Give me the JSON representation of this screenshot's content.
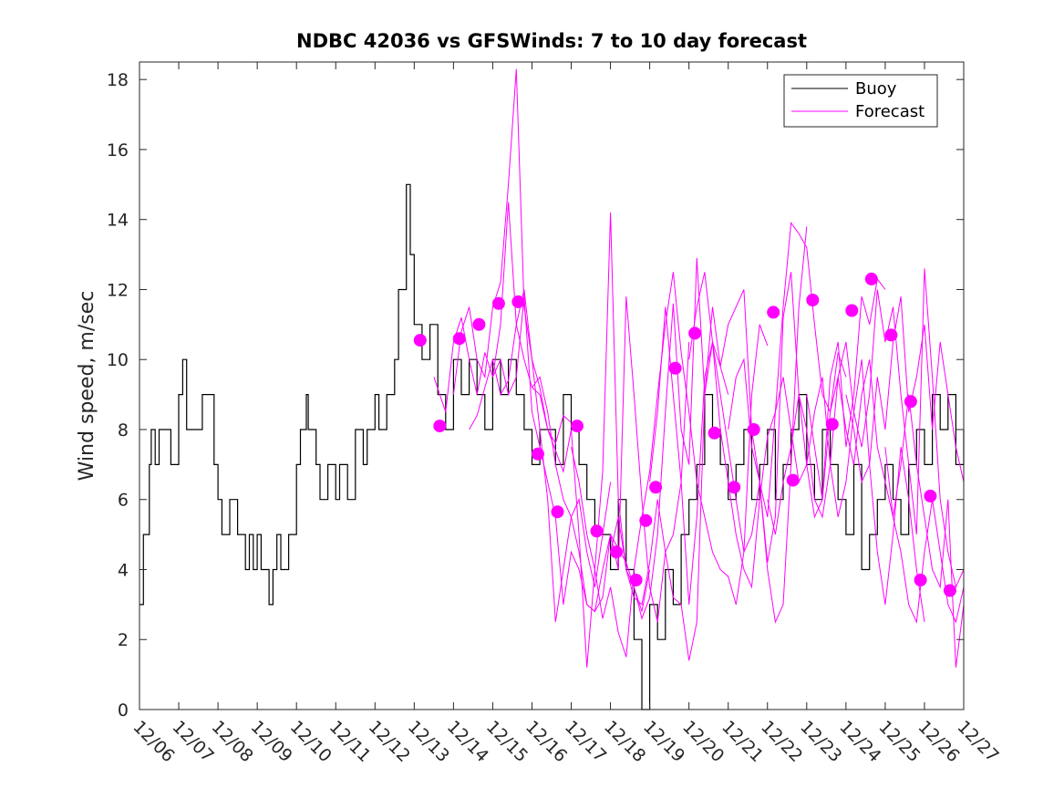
{
  "chart_data": {
    "type": "line",
    "title": "NDBC 42036 vs GFSWinds: 7 to 10 day forecast",
    "xlabel": "",
    "ylabel": "Wind speed, m/sec",
    "xlim": [
      0,
      21
    ],
    "ylim": [
      0,
      18.5
    ],
    "x_tick_labels": [
      "12/06",
      "12/07",
      "12/08",
      "12/09",
      "12/10",
      "12/11",
      "12/12",
      "12/13",
      "12/14",
      "12/15",
      "12/16",
      "12/17",
      "12/18",
      "12/19",
      "12/20",
      "12/21",
      "12/22",
      "12/23",
      "12/24",
      "12/25",
      "12/26",
      "12/27"
    ],
    "y_ticks": [
      0,
      2,
      4,
      6,
      8,
      10,
      12,
      14,
      16,
      18
    ],
    "legend": {
      "position": "top-right",
      "entries": [
        {
          "label": "Buoy",
          "color": "#000000"
        },
        {
          "label": "Forecast",
          "color": "#ff00ff"
        }
      ]
    },
    "series": [
      {
        "name": "Buoy",
        "color": "#000000",
        "x": [
          0,
          0.1,
          0.25,
          0.3,
          0.4,
          0.5,
          0.7,
          0.8,
          1.0,
          1.1,
          1.2,
          1.5,
          1.6,
          1.9,
          2.0,
          2.1,
          2.3,
          2.5,
          2.7,
          2.8,
          2.9,
          3.0,
          3.1,
          3.3,
          3.4,
          3.5,
          3.6,
          3.8,
          4.0,
          4.1,
          4.25,
          4.3,
          4.5,
          4.6,
          4.8,
          5.0,
          5.1,
          5.3,
          5.5,
          5.6,
          5.7,
          5.8,
          6.0,
          6.1,
          6.3,
          6.5,
          6.6,
          6.8,
          6.9,
          7.0,
          7.2,
          7.4,
          7.6,
          7.8,
          8.0,
          8.2,
          8.4,
          8.6,
          8.8,
          9.0,
          9.2,
          9.4,
          9.6,
          9.8,
          10.0,
          10.2,
          10.4,
          10.6,
          10.8,
          11.0,
          11.2,
          11.4,
          11.6,
          11.8,
          12.0,
          12.2,
          12.4,
          12.6,
          12.8,
          13.0,
          13.2,
          13.4,
          13.6,
          13.8,
          14.0,
          14.2,
          14.4,
          14.6,
          14.8,
          15.0,
          15.2,
          15.4,
          15.6,
          15.8,
          16.0,
          16.2,
          16.4,
          16.6,
          16.8,
          17.0,
          17.2,
          17.4,
          17.6,
          17.8,
          18.0,
          18.2,
          18.4,
          18.6,
          18.8,
          19.0,
          19.2,
          19.4,
          19.6,
          19.8,
          20.0,
          20.2,
          20.4,
          20.6,
          20.8,
          21.0
        ],
        "values": [
          3,
          5,
          7,
          8,
          7,
          8,
          8,
          7,
          9,
          10,
          8,
          8,
          9,
          7,
          6,
          5,
          6,
          5,
          4,
          5,
          4,
          5,
          4,
          3,
          4,
          5,
          4,
          5,
          7,
          8,
          9,
          8,
          7,
          6,
          7,
          6,
          7,
          6,
          8,
          8,
          7,
          8,
          9,
          8,
          9,
          10,
          12,
          15,
          13,
          11,
          10,
          11,
          9,
          8,
          10,
          9,
          10,
          9,
          8,
          10,
          9,
          10,
          9,
          8,
          7,
          8,
          8,
          7,
          9,
          8,
          7,
          6,
          5,
          5,
          4,
          6,
          4,
          2,
          0,
          3,
          2,
          4,
          3,
          5,
          6,
          7,
          9,
          8,
          7,
          6,
          7,
          8,
          6,
          7,
          8,
          6,
          7,
          8,
          9,
          7,
          6,
          8,
          7,
          6,
          5,
          7,
          4,
          5,
          6,
          7,
          6,
          5,
          7,
          8,
          7,
          9,
          8,
          9,
          7,
          8
        ]
      },
      {
        "name": "Forecast run 1",
        "color": "#ff00ff",
        "x": [
          7.5,
          7.8,
          8.0,
          8.2,
          8.4,
          8.6,
          8.8,
          9.0,
          9.2,
          9.4,
          9.6,
          9.8,
          10.0,
          10.2,
          10.4,
          10.6,
          10.8,
          11.0
        ],
        "values": [
          9.5,
          8.5,
          10.5,
          11.2,
          10.0,
          9.0,
          10.2,
          9.5,
          11.0,
          14.5,
          11.0,
          10.0,
          9.2,
          9.0,
          8.0,
          7.6,
          8.4,
          8.2
        ]
      },
      {
        "name": "Forecast run 2",
        "color": "#ff00ff",
        "x": [
          8.0,
          8.2,
          8.4,
          8.6,
          8.8,
          9.0,
          9.2,
          9.4,
          9.6,
          9.8,
          10.0,
          10.2,
          10.4,
          10.6,
          10.8,
          11.0,
          11.2,
          11.4,
          11.6,
          11.8,
          12.0
        ],
        "values": [
          9.0,
          10.8,
          11.5,
          10.0,
          9.5,
          11.5,
          12.2,
          15.0,
          18.3,
          11.5,
          10.0,
          8.0,
          6.0,
          2.5,
          4.0,
          5.5,
          6.0,
          4.5,
          3.5,
          5.0,
          6.5
        ]
      },
      {
        "name": "Forecast run 3",
        "color": "#ff00ff",
        "x": [
          8.4,
          8.6,
          8.8,
          9.0,
          9.2,
          9.4,
          9.6,
          9.8,
          10.0,
          10.2,
          10.4,
          10.6,
          10.8,
          11.0,
          11.2,
          11.4,
          11.6,
          11.8,
          12.0,
          12.2,
          12.4,
          12.6,
          12.8,
          13.0
        ],
        "values": [
          8.0,
          8.4,
          9.2,
          10.0,
          9.0,
          9.4,
          11.0,
          12.0,
          10.0,
          9.2,
          8.0,
          7.4,
          6.8,
          8.0,
          5.0,
          1.2,
          4.0,
          6.8,
          14.2,
          6.0,
          4.0,
          3.5,
          2.8,
          4.0
        ]
      },
      {
        "name": "Forecast run 4",
        "color": "#ff00ff",
        "x": [
          9.0,
          9.2,
          9.4,
          9.6,
          9.8,
          10.0,
          10.2,
          10.4,
          10.6,
          10.8,
          11.0,
          11.2,
          11.4,
          11.6,
          11.8,
          12.0,
          12.2,
          12.4,
          12.6,
          12.8,
          13.0,
          13.2,
          13.4,
          13.6,
          13.8,
          14.0
        ],
        "values": [
          9.5,
          10.0,
          9.0,
          9.5,
          11.8,
          8.5,
          7.5,
          6.5,
          5.5,
          3.0,
          4.5,
          4.0,
          3.0,
          2.8,
          4.0,
          5.0,
          4.0,
          11.8,
          9.0,
          6.0,
          3.5,
          2.5,
          4.5,
          5.0,
          6.5,
          10.5
        ]
      },
      {
        "name": "Forecast run 5",
        "color": "#ff00ff",
        "x": [
          10.0,
          10.2,
          10.4,
          10.6,
          10.8,
          11.0,
          11.2,
          11.4,
          11.6,
          11.8,
          12.0,
          12.2,
          12.4,
          12.6,
          12.8,
          13.0,
          13.2,
          13.4,
          13.6,
          13.8,
          14.0,
          14.2,
          14.4,
          14.6,
          14.8,
          15.0
        ],
        "values": [
          9.2,
          9.5,
          8.5,
          7.0,
          6.0,
          5.5,
          4.5,
          3.0,
          2.8,
          3.2,
          5.0,
          4.6,
          4.2,
          3.5,
          2.6,
          3.2,
          5.0,
          8.5,
          11.6,
          8.0,
          7.0,
          12.9,
          9.0,
          11.5,
          9.8,
          9.0
        ]
      },
      {
        "name": "Forecast run 6",
        "color": "#ff00ff",
        "x": [
          11.0,
          11.2,
          11.4,
          11.6,
          11.8,
          12.0,
          12.2,
          12.4,
          12.6,
          12.8,
          13.0,
          13.2,
          13.4,
          13.6,
          13.8,
          14.0,
          14.2,
          14.4,
          14.6,
          14.8,
          15.0,
          15.2,
          15.4,
          15.6,
          15.8,
          16.0
        ],
        "values": [
          7.5,
          6.5,
          5.0,
          4.0,
          2.6,
          3.5,
          2.2,
          1.5,
          4.0,
          5.5,
          6.8,
          9.0,
          11.0,
          12.5,
          10.2,
          8.5,
          6.5,
          5.5,
          4.5,
          4.0,
          3.8,
          3.0,
          4.5,
          9.0,
          11.0,
          10.4
        ]
      },
      {
        "name": "Forecast run 7",
        "color": "#ff00ff",
        "x": [
          12.0,
          12.2,
          12.4,
          12.6,
          12.8,
          13.0,
          13.2,
          13.4,
          13.6,
          13.8,
          14.0,
          14.2,
          14.4,
          14.6,
          14.8,
          15.0,
          15.2,
          15.4,
          15.6,
          15.8,
          16.0,
          16.2,
          16.4,
          16.6,
          16.8,
          17.0
        ],
        "values": [
          4.5,
          5.5,
          4.0,
          3.2,
          3.0,
          4.2,
          6.0,
          4.5,
          3.2,
          3.0,
          1.4,
          2.5,
          9.0,
          10.5,
          9.8,
          11.0,
          11.5,
          12.0,
          8.0,
          6.5,
          4.0,
          2.5,
          3.0,
          7.0,
          11.5,
          13.8
        ]
      },
      {
        "name": "Forecast run 8",
        "color": "#ff00ff",
        "x": [
          13.0,
          13.2,
          13.4,
          13.6,
          13.8,
          14.0,
          14.2,
          14.4,
          14.6,
          14.8,
          15.0,
          15.2,
          15.4,
          15.6,
          15.8,
          16.0,
          16.2,
          16.4,
          16.6,
          16.8,
          17.0,
          17.2,
          17.4,
          17.6,
          17.8,
          18.0
        ],
        "values": [
          6.5,
          8.5,
          11.5,
          9.0,
          6.5,
          3.0,
          5.5,
          9.5,
          10.5,
          8.0,
          6.5,
          5.0,
          4.0,
          3.5,
          6.0,
          7.8,
          8.5,
          11.5,
          13.9,
          13.6,
          13.2,
          11.0,
          9.0,
          8.5,
          10.2,
          9.5
        ]
      },
      {
        "name": "Forecast run 9",
        "color": "#ff00ff",
        "x": [
          14.0,
          14.2,
          14.4,
          14.6,
          14.8,
          15.0,
          15.2,
          15.4,
          15.6,
          15.8,
          16.0,
          16.2,
          16.4,
          16.6,
          16.8,
          17.0,
          17.2,
          17.4,
          17.6,
          17.8,
          18.0,
          18.2,
          18.4,
          18.6,
          18.8,
          19.0
        ],
        "values": [
          10.0,
          11.5,
          12.5,
          10.5,
          9.0,
          7.5,
          6.0,
          4.5,
          5.0,
          6.5,
          4.2,
          5.5,
          11.2,
          12.5,
          9.0,
          7.0,
          5.5,
          6.0,
          9.5,
          10.5,
          7.5,
          9.0,
          11.8,
          11.0,
          12.3,
          12.0
        ]
      },
      {
        "name": "Forecast run 10",
        "color": "#ff00ff",
        "x": [
          15.0,
          15.2,
          15.4,
          15.6,
          15.8,
          16.0,
          16.2,
          16.4,
          16.6,
          16.8,
          17.0,
          17.2,
          17.4,
          17.6,
          17.8,
          18.0,
          18.2,
          18.4,
          18.6,
          18.8,
          19.0,
          19.2,
          19.4,
          19.6,
          19.8,
          20.0
        ],
        "values": [
          8.0,
          9.5,
          10.0,
          7.5,
          6.5,
          5.5,
          8.5,
          9.5,
          8.0,
          6.5,
          7.0,
          8.5,
          9.5,
          7.0,
          5.5,
          6.5,
          8.5,
          10.0,
          7.0,
          4.5,
          3.0,
          5.0,
          7.5,
          6.0,
          4.0,
          2.5
        ]
      },
      {
        "name": "Forecast run 11",
        "color": "#ff00ff",
        "x": [
          16.0,
          16.2,
          16.4,
          16.6,
          16.8,
          17.0,
          17.2,
          17.4,
          17.6,
          17.8,
          18.0,
          18.2,
          18.4,
          18.6,
          18.8,
          19.0,
          19.2,
          19.4,
          19.6,
          19.8,
          20.0,
          20.2,
          20.4,
          20.6,
          20.8,
          21.0
        ],
        "values": [
          6.0,
          5.0,
          6.5,
          7.5,
          9.0,
          8.0,
          6.0,
          5.5,
          7.0,
          9.5,
          10.5,
          8.5,
          7.5,
          9.0,
          12.0,
          10.5,
          11.5,
          9.0,
          7.0,
          5.0,
          12.6,
          9.5,
          6.0,
          4.5,
          3.5,
          4.0
        ]
      },
      {
        "name": "Forecast run 12",
        "color": "#ff00ff",
        "x": [
          17.0,
          17.2,
          17.4,
          17.6,
          17.8,
          18.0,
          18.2,
          18.4,
          18.6,
          18.8,
          19.0,
          19.2,
          19.4,
          19.6,
          19.8,
          20.0,
          20.2,
          20.4,
          20.6,
          20.8,
          21.0
        ],
        "values": [
          9.0,
          7.5,
          6.0,
          8.5,
          9.5,
          8.0,
          7.0,
          9.0,
          10.0,
          7.5,
          6.5,
          5.5,
          7.0,
          9.0,
          7.0,
          5.5,
          4.0,
          3.5,
          6.0,
          1.2,
          3.0
        ]
      },
      {
        "name": "Forecast run 13",
        "color": "#ff00ff",
        "x": [
          18.0,
          18.2,
          18.4,
          18.6,
          18.8,
          19.0,
          19.2,
          19.4,
          19.6,
          19.8,
          20.0,
          20.2,
          20.4,
          20.6,
          20.8,
          21.0
        ],
        "values": [
          9.0,
          8.0,
          6.5,
          7.0,
          9.5,
          8.0,
          10.5,
          11.8,
          8.5,
          9.5,
          11.0,
          8.0,
          10.5,
          9.0,
          7.5,
          6.5
        ]
      },
      {
        "name": "Forecast run 14",
        "color": "#ff00ff",
        "x": [
          19.0,
          19.2,
          19.4,
          19.6,
          19.8,
          20.0,
          20.2,
          20.4,
          20.6,
          20.8,
          21.0
        ],
        "values": [
          7.5,
          5.5,
          4.5,
          3.0,
          2.5,
          4.5,
          6.0,
          4.5,
          3.0,
          2.5,
          3.5
        ]
      }
    ],
    "markers": {
      "name": "Forecast points",
      "color": "#ff00ff",
      "x": [
        7.15,
        7.65,
        8.15,
        8.65,
        9.15,
        9.65,
        10.15,
        10.65,
        11.15,
        11.65,
        12.15,
        12.65,
        12.9,
        13.15,
        13.65,
        14.15,
        14.65,
        15.15,
        15.65,
        16.15,
        16.65,
        17.15,
        17.65,
        18.15,
        18.65,
        19.15,
        19.65,
        20.15,
        20.65
      ],
      "values": [
        10.55,
        8.1,
        10.6,
        11.0,
        11.6,
        11.65,
        7.3,
        5.65,
        8.1,
        5.1,
        4.5,
        3.7,
        5.4,
        6.35,
        9.75,
        10.75,
        7.9,
        6.35,
        8.0,
        11.35,
        6.55,
        11.7,
        8.15,
        11.4,
        12.3,
        10.7,
        8.8,
        6.1,
        3.4
      ]
    },
    "extra_markers": {
      "x": [
        19.9
      ],
      "values": [
        3.7
      ]
    }
  }
}
